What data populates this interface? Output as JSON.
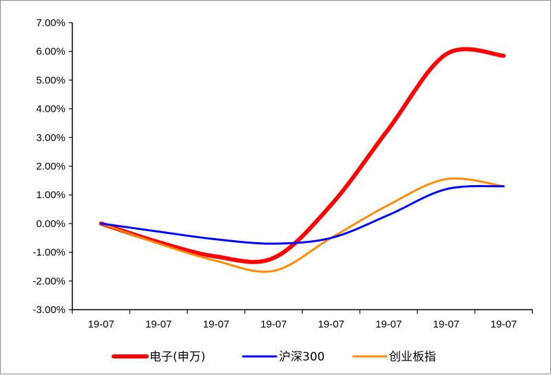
{
  "chart_data": {
    "type": "line",
    "categories": [
      "19-07",
      "19-07",
      "19-07",
      "19-07",
      "19-07",
      "19-07",
      "19-07",
      "19-07"
    ],
    "y_tick_labels": [
      "-3.00%",
      "-2.00%",
      "-1.00%",
      "0.00%",
      "1.00%",
      "2.00%",
      "3.00%",
      "4.00%",
      "5.00%",
      "6.00%",
      "7.00%"
    ],
    "ylim": [
      -3,
      7
    ],
    "grid": false,
    "legend_position": "bottom",
    "series": [
      {
        "name": "电子(申万)",
        "color": "#ff0000",
        "values": [
          0.0,
          -0.65,
          -1.15,
          -1.2,
          0.65,
          3.3,
          5.9,
          5.85
        ]
      },
      {
        "name": "沪深300",
        "color": "#0000ff",
        "values": [
          0.0,
          -0.28,
          -0.55,
          -0.7,
          -0.5,
          0.3,
          1.2,
          1.3
        ]
      },
      {
        "name": "创业板指",
        "color": "#ff8c00",
        "values": [
          0.0,
          -0.7,
          -1.3,
          -1.65,
          -0.5,
          0.65,
          1.55,
          1.3
        ]
      }
    ]
  }
}
